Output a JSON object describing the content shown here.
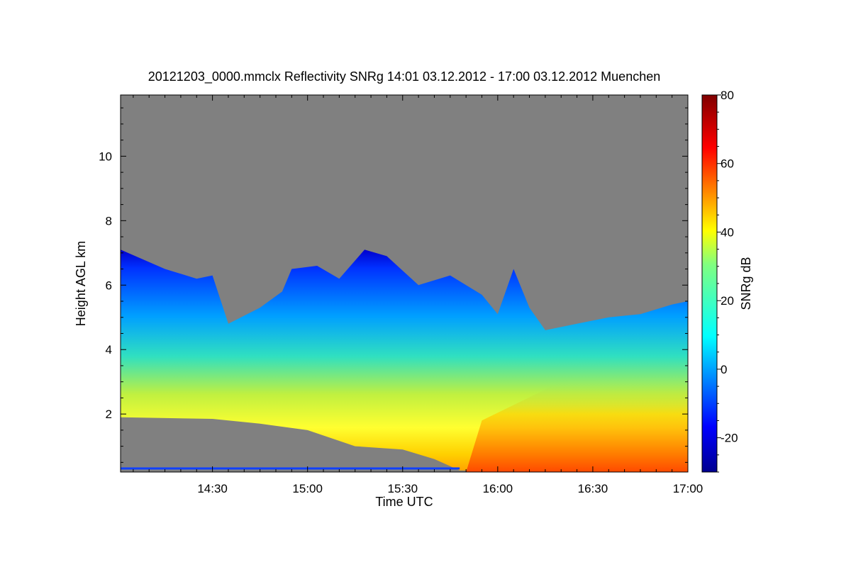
{
  "chart_data": {
    "type": "heatmap",
    "title": "20121203_0000.mmclx Reflectivity SNRg   14:01 03.12.2012 - 17:00 03.12.2012 Muenchen",
    "xlabel": "Time UTC",
    "ylabel": "Height AGL km",
    "x_range": [
      "14:01",
      "17:00"
    ],
    "y_range_km": [
      0.2,
      11.9
    ],
    "x_ticks": [
      "14:30",
      "15:00",
      "15:30",
      "16:00",
      "16:30",
      "17:00"
    ],
    "y_ticks": [
      "2",
      "4",
      "6",
      "8",
      "10"
    ],
    "colorbar": {
      "label": "SNRg dB",
      "range": [
        -30,
        80
      ],
      "ticks": [
        "-20",
        "0",
        "20",
        "40",
        "60",
        "80"
      ],
      "colormap": "jet"
    },
    "no_signal_color": "#808080",
    "echo_top_km": [
      {
        "t": "14:01",
        "h": 7.1
      },
      {
        "t": "14:15",
        "h": 6.5
      },
      {
        "t": "14:25",
        "h": 6.2
      },
      {
        "t": "14:30",
        "h": 6.3
      },
      {
        "t": "14:35",
        "h": 4.8
      },
      {
        "t": "14:45",
        "h": 5.3
      },
      {
        "t": "14:52",
        "h": 5.8
      },
      {
        "t": "14:55",
        "h": 6.5
      },
      {
        "t": "15:03",
        "h": 6.6
      },
      {
        "t": "15:10",
        "h": 6.2
      },
      {
        "t": "15:18",
        "h": 7.1
      },
      {
        "t": "15:25",
        "h": 6.9
      },
      {
        "t": "15:35",
        "h": 6.0
      },
      {
        "t": "15:45",
        "h": 6.3
      },
      {
        "t": "15:55",
        "h": 5.7
      },
      {
        "t": "16:00",
        "h": 5.1
      },
      {
        "t": "16:05",
        "h": 6.5
      },
      {
        "t": "16:10",
        "h": 5.3
      },
      {
        "t": "16:15",
        "h": 4.6
      },
      {
        "t": "16:25",
        "h": 4.8
      },
      {
        "t": "16:35",
        "h": 5.0
      },
      {
        "t": "16:45",
        "h": 5.1
      },
      {
        "t": "16:55",
        "h": 5.4
      },
      {
        "t": "17:00",
        "h": 5.5
      }
    ],
    "echo_base_km": [
      {
        "t": "14:01",
        "h": 1.9
      },
      {
        "t": "14:30",
        "h": 1.85
      },
      {
        "t": "14:45",
        "h": 1.7
      },
      {
        "t": "15:00",
        "h": 1.5
      },
      {
        "t": "15:15",
        "h": 1.0
      },
      {
        "t": "15:30",
        "h": 0.9
      },
      {
        "t": "15:40",
        "h": 0.6
      },
      {
        "t": "15:48",
        "h": 0.25
      },
      {
        "t": "17:00",
        "h": 0.2
      }
    ]
  }
}
